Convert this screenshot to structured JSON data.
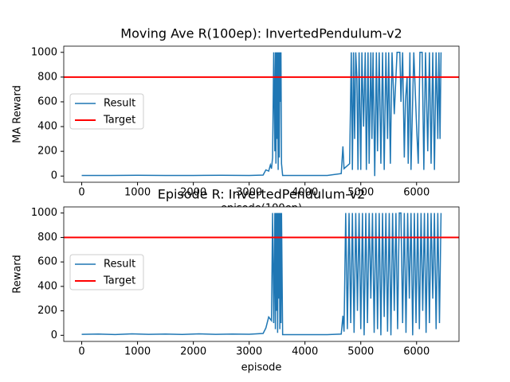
{
  "chart_data": [
    {
      "type": "line",
      "title": "Moving Ave R(100ep): InvertedPendulum-v2",
      "xlabel": "episode(100ep)",
      "ylabel": "MA Reward",
      "x": [
        0,
        500,
        1000,
        1500,
        2000,
        2500,
        3000,
        3250,
        3300,
        3350,
        3380,
        3400,
        3420,
        3440,
        3460,
        3470,
        3480,
        3490,
        3500,
        3510,
        3520,
        3530,
        3540,
        3550,
        3560,
        3570,
        3580,
        3600,
        4000,
        4400,
        4650,
        4680,
        4700,
        4750,
        4800,
        4830,
        4850,
        4870,
        4890,
        4910,
        4930,
        4950,
        4970,
        5000,
        5020,
        5050,
        5080,
        5100,
        5130,
        5150,
        5180,
        5200,
        5220,
        5250,
        5280,
        5300,
        5330,
        5360,
        5390,
        5420,
        5450,
        5480,
        5500,
        5530,
        5560,
        5600,
        5650,
        5700,
        5720,
        5750,
        5780,
        5800,
        5830,
        5850,
        5880,
        5900,
        5950,
        6000,
        6030,
        6060,
        6100,
        6130,
        6160,
        6200,
        6230,
        6260,
        6290,
        6320,
        6350,
        6380,
        6400,
        6420,
        6438
      ],
      "series": [
        {
          "name": "Result",
          "color": "#1f77b4",
          "values": [
            5,
            5,
            6,
            5,
            5,
            6,
            5,
            8,
            50,
            40,
            90,
            60,
            150,
            1000,
            200,
            1000,
            100,
            1000,
            300,
            1000,
            50,
            1000,
            150,
            1000,
            600,
            1000,
            100,
            5,
            5,
            5,
            20,
            240,
            60,
            80,
            100,
            1000,
            50,
            1000,
            300,
            1000,
            800,
            50,
            1000,
            50,
            1000,
            400,
            1000,
            50,
            1000,
            100,
            1000,
            300,
            1000,
            0,
            1000,
            200,
            1000,
            100,
            1000,
            50,
            1000,
            300,
            1000,
            100,
            1000,
            500,
            1000,
            1000,
            600,
            1000,
            150,
            600,
            800,
            100,
            1000,
            50,
            1000,
            400,
            100,
            1000,
            1000,
            50,
            1000,
            200,
            1000,
            100,
            1000,
            50,
            1000,
            300,
            1000,
            300,
            1000
          ]
        }
      ],
      "hline": {
        "name": "Target",
        "color": "#ff0000",
        "y": 800
      },
      "xlim": [
        -322,
        6760
      ],
      "ylim": [
        -50,
        1050
      ],
      "xticks": [
        0,
        1000,
        2000,
        3000,
        4000,
        5000,
        6000
      ],
      "yticks": [
        0,
        200,
        400,
        600,
        800,
        1000
      ]
    },
    {
      "type": "line",
      "title": "Episode R: InvertedPendulum-v2",
      "xlabel": "episode",
      "ylabel": "Reward",
      "x": [
        0,
        300,
        600,
        900,
        1200,
        1500,
        1800,
        2100,
        2400,
        2700,
        3000,
        3250,
        3300,
        3350,
        3400,
        3420,
        3440,
        3460,
        3470,
        3480,
        3490,
        3500,
        3510,
        3520,
        3530,
        3540,
        3550,
        3560,
        3570,
        3580,
        3600,
        4000,
        4400,
        4650,
        4680,
        4700,
        4730,
        4760,
        4790,
        4820,
        4850,
        4880,
        4910,
        4940,
        4970,
        5000,
        5030,
        5060,
        5090,
        5120,
        5150,
        5180,
        5210,
        5240,
        5270,
        5300,
        5330,
        5360,
        5390,
        5420,
        5450,
        5480,
        5510,
        5540,
        5570,
        5600,
        5630,
        5660,
        5690,
        5720,
        5750,
        5780,
        5810,
        5840,
        5870,
        5900,
        5930,
        5960,
        5990,
        6020,
        6050,
        6080,
        6110,
        6140,
        6170,
        6200,
        6230,
        6260,
        6290,
        6320,
        6350,
        6380,
        6410,
        6438
      ],
      "series": [
        {
          "name": "Result",
          "color": "#1f77b4",
          "values": [
            8,
            10,
            6,
            12,
            8,
            10,
            7,
            12,
            8,
            10,
            9,
            15,
            60,
            150,
            120,
            1000,
            100,
            1000,
            50,
            1000,
            200,
            1000,
            20,
            1000,
            300,
            1000,
            50,
            1000,
            100,
            1000,
            5,
            5,
            5,
            10,
            160,
            30,
            1000,
            50,
            1000,
            100,
            1000,
            20,
            1000,
            200,
            1000,
            50,
            1000,
            0,
            1000,
            100,
            1000,
            300,
            1000,
            20,
            1000,
            50,
            1000,
            0,
            1000,
            150,
            1000,
            30,
            1000,
            0,
            1000,
            200,
            1000,
            50,
            1000,
            1000,
            100,
            1000,
            20,
            1000,
            300,
            1000,
            0,
            1000,
            100,
            1000,
            50,
            1000,
            200,
            1000,
            20,
            1000,
            100,
            1000,
            300,
            1000,
            50,
            1000,
            100,
            1000
          ]
        }
      ],
      "hline": {
        "name": "Target",
        "color": "#ff0000",
        "y": 800
      },
      "xlim": [
        -322,
        6760
      ],
      "ylim": [
        -50,
        1050
      ],
      "xticks": [
        0,
        1000,
        2000,
        3000,
        4000,
        5000,
        6000
      ],
      "yticks": [
        0,
        200,
        400,
        600,
        800,
        1000
      ]
    }
  ]
}
